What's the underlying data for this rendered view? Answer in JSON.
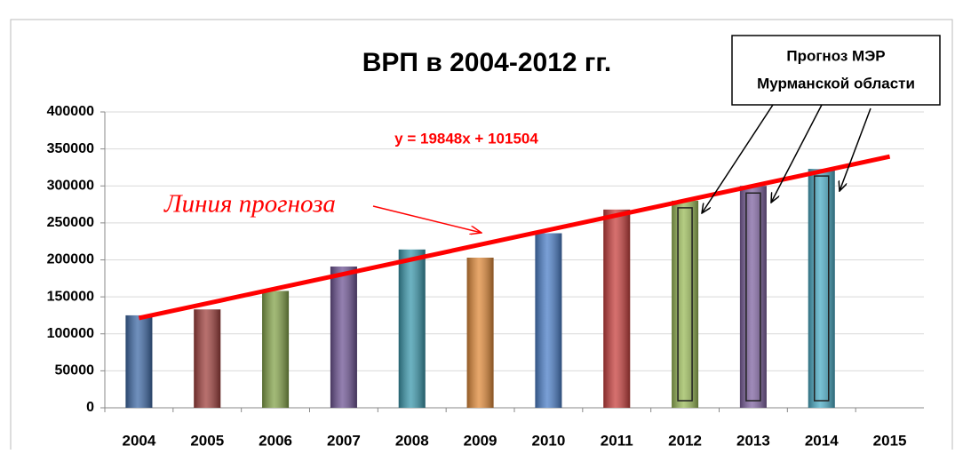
{
  "chart_data": {
    "type": "bar",
    "title": "ВРП в 2004-2012 гг.",
    "categories": [
      "2004",
      "2005",
      "2006",
      "2007",
      "2008",
      "2009",
      "2010",
      "2011",
      "2012",
      "2013",
      "2014",
      "2015"
    ],
    "values": [
      125000,
      133000,
      158000,
      191000,
      214000,
      203000,
      236000,
      268000,
      280000,
      300000,
      323000,
      null
    ],
    "colors": [
      "#3f6aa6",
      "#a0413e",
      "#84a34a",
      "#6e5494",
      "#3b98ac",
      "#e08a3a",
      "#4c7fc8",
      "#c8403e",
      "#9bbb59",
      "#8064a2",
      "#4bacc6",
      "#4bacc6"
    ],
    "ylim": [
      0,
      400000
    ],
    "yticks": [
      0,
      50000,
      100000,
      150000,
      200000,
      250000,
      300000,
      350000,
      400000
    ],
    "grid": true,
    "trendline": {
      "label": "y = 19848x + 101504",
      "slope": 19848,
      "intercept": 101504,
      "color": "#ff0000"
    },
    "trend_annotation": "Линия прогноза",
    "forecast_note": [
      "Прогноз МЭР",
      "Мурманской области"
    ]
  }
}
